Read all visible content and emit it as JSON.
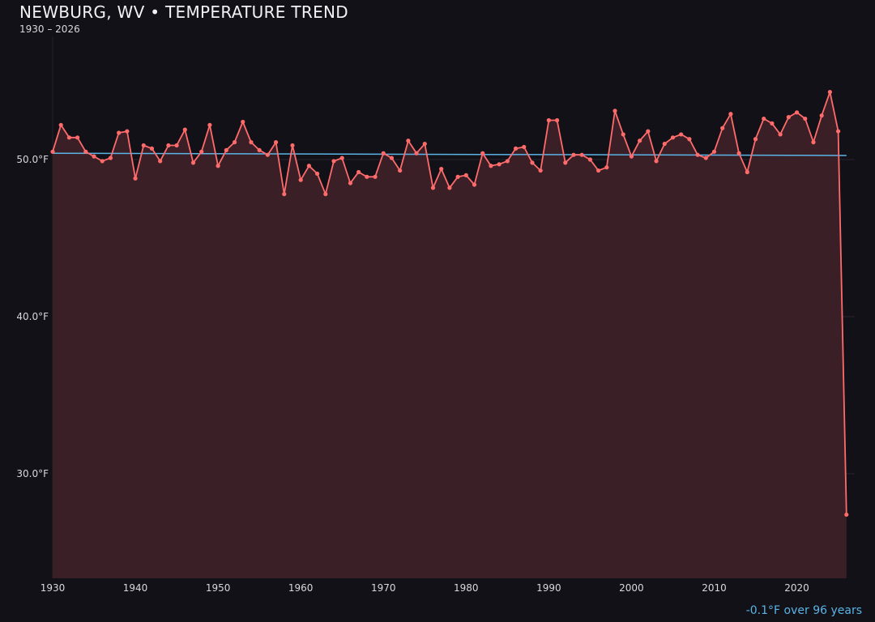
{
  "chart_data": {
    "type": "line",
    "title": "NEWBURG, WV • TEMPERATURE TREND",
    "subtitle": "1930 – 2026",
    "annotation": "-0.1°F over 96 years",
    "xlabel": "",
    "ylabel": "",
    "xlim": [
      1930,
      2027
    ],
    "ylim": [
      23.35,
      58.35
    ],
    "x_ticks": [
      1930,
      1940,
      1950,
      1960,
      1970,
      1980,
      1990,
      2000,
      2010,
      2020
    ],
    "y_ticks": [
      30,
      40,
      50
    ],
    "y_tick_labels": [
      "30.0°F",
      "40.0°F",
      "50.0°F"
    ],
    "grid": "horizontal",
    "colors": {
      "line": "#ff6b6b",
      "fill": "#3a1f27",
      "trend": "#5ab4e6",
      "background": "#121117"
    },
    "series": [
      {
        "x": [
          1930,
          1931,
          1932,
          1933,
          1934,
          1935,
          1936,
          1937,
          1938,
          1939,
          1940,
          1941,
          1942,
          1943,
          1944,
          1945,
          1946,
          1947,
          1948,
          1949,
          1950,
          1951,
          1952,
          1953,
          1954,
          1955,
          1956,
          1957,
          1958,
          1959,
          1960,
          1961,
          1962,
          1963,
          1964,
          1965,
          1966,
          1967,
          1968,
          1969,
          1970,
          1971,
          1972,
          1973,
          1974,
          1975,
          1976,
          1977,
          1978,
          1979,
          1980,
          1981,
          1982,
          1983,
          1984,
          1985,
          1986,
          1987,
          1988,
          1989,
          1990,
          1991,
          1992,
          1993,
          1994,
          1995,
          1996,
          1997,
          1998,
          1999,
          2000,
          2001,
          2002,
          2003,
          2004,
          2005,
          2006,
          2007,
          2008,
          2009,
          2010,
          2011,
          2012,
          2013,
          2014,
          2015,
          2016,
          2017,
          2018,
          2019,
          2020,
          2021,
          2022,
          2023,
          2024,
          2025,
          2026
        ],
        "values": [
          50.5,
          52.2,
          51.4,
          51.4,
          50.5,
          50.2,
          49.9,
          50.1,
          51.7,
          51.8,
          48.8,
          50.9,
          50.7,
          49.9,
          50.9,
          50.9,
          51.9,
          49.8,
          50.5,
          52.2,
          49.6,
          50.6,
          51.1,
          52.4,
          51.1,
          50.6,
          50.3,
          51.1,
          47.8,
          50.9,
          48.7,
          49.6,
          49.1,
          47.8,
          49.9,
          50.1,
          48.5,
          49.2,
          48.9,
          48.9,
          50.4,
          50.1,
          49.3,
          51.2,
          50.4,
          51.0,
          48.2,
          49.4,
          48.2,
          48.9,
          49.0,
          48.4,
          50.4,
          49.6,
          49.7,
          49.9,
          50.7,
          50.8,
          49.8,
          49.3,
          52.5,
          52.5,
          49.8,
          50.3,
          50.3,
          50.0,
          49.3,
          49.5,
          53.1,
          51.6,
          50.2,
          51.2,
          51.8,
          49.9,
          51.0,
          51.4,
          51.6,
          51.3,
          50.3,
          50.1,
          50.5,
          52.0,
          52.9,
          50.4,
          49.2,
          51.3,
          52.6,
          52.3,
          51.6,
          52.7,
          53.0,
          52.6,
          51.1,
          52.8,
          54.3,
          51.8,
          27.4
        ]
      }
    ],
    "trend": {
      "x": [
        1930,
        2026
      ],
      "values": [
        50.4,
        50.26
      ]
    }
  }
}
